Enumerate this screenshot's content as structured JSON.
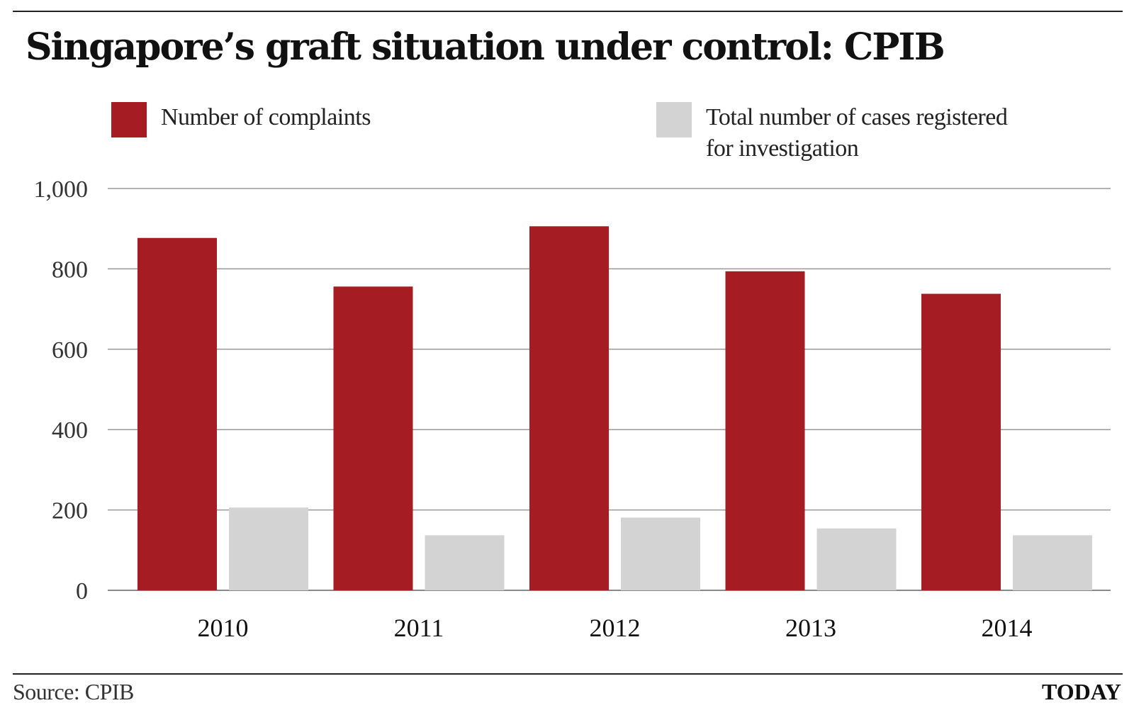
{
  "chart_data": {
    "type": "bar",
    "title": "Singapore’s graft situation under control: CPIB",
    "categories": [
      "2010",
      "2011",
      "2012",
      "2013",
      "2014"
    ],
    "series": [
      {
        "name": "Number of complaints",
        "color": "#a51c22",
        "values": [
          877,
          756,
          906,
          794,
          738
        ]
      },
      {
        "name": "Total number of cases registered for investigation",
        "color": "#d3d3d3",
        "values": [
          206,
          137,
          181,
          154,
          137
        ]
      }
    ],
    "legend_lines": [
      [
        "Number of complaints"
      ],
      [
        "Total number of cases registered",
        "for investigation"
      ]
    ],
    "yticks": [
      "0",
      "200",
      "400",
      "600",
      "800",
      "1,000"
    ],
    "ytick_values": [
      0,
      200,
      400,
      600,
      800,
      1000
    ],
    "ylim": [
      0,
      1000
    ],
    "grid": true,
    "legend_placement": "top",
    "source": "Source: CPIB",
    "brand": "TODAY"
  }
}
